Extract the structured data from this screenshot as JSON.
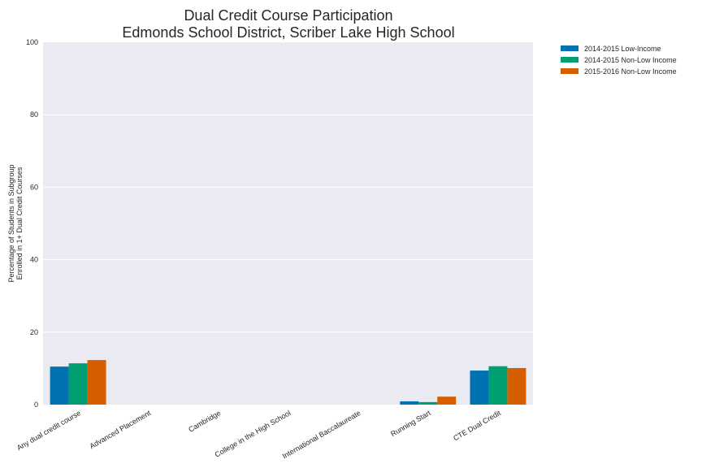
{
  "chart_data": {
    "type": "bar",
    "title_lines": [
      "Dual Credit Course Participation",
      "Edmonds School District, Scriber Lake High School"
    ],
    "ylabel_lines": [
      "Percentage of Students in Subgroup",
      "Enrolled in 1+ Dual Credit Courses"
    ],
    "xlabel": "",
    "ylim": [
      0,
      100
    ],
    "yticks": [
      0,
      20,
      40,
      60,
      80,
      100
    ],
    "grid": true,
    "legend_position": "outside-top-right",
    "categories": [
      "Any dual credit course",
      "Advanced Placement",
      "Cambridge",
      "College in the High School",
      "International Baccalaureate",
      "Running Start",
      "CTE Dual Credit"
    ],
    "series": [
      {
        "name": "2014-2015 Low-Income",
        "color": "#0072b2",
        "values": [
          10.5,
          0,
          0,
          0,
          0,
          0.9,
          9.4
        ]
      },
      {
        "name": "2014-2015 Non-Low Income",
        "color": "#009e73",
        "values": [
          11.4,
          0,
          0,
          0,
          0,
          0.7,
          10.6
        ]
      },
      {
        "name": "2015-2016 Non-Low Income",
        "color": "#d55e00",
        "values": [
          12.3,
          0,
          0,
          0,
          0,
          2.2,
          10.1
        ]
      }
    ]
  }
}
